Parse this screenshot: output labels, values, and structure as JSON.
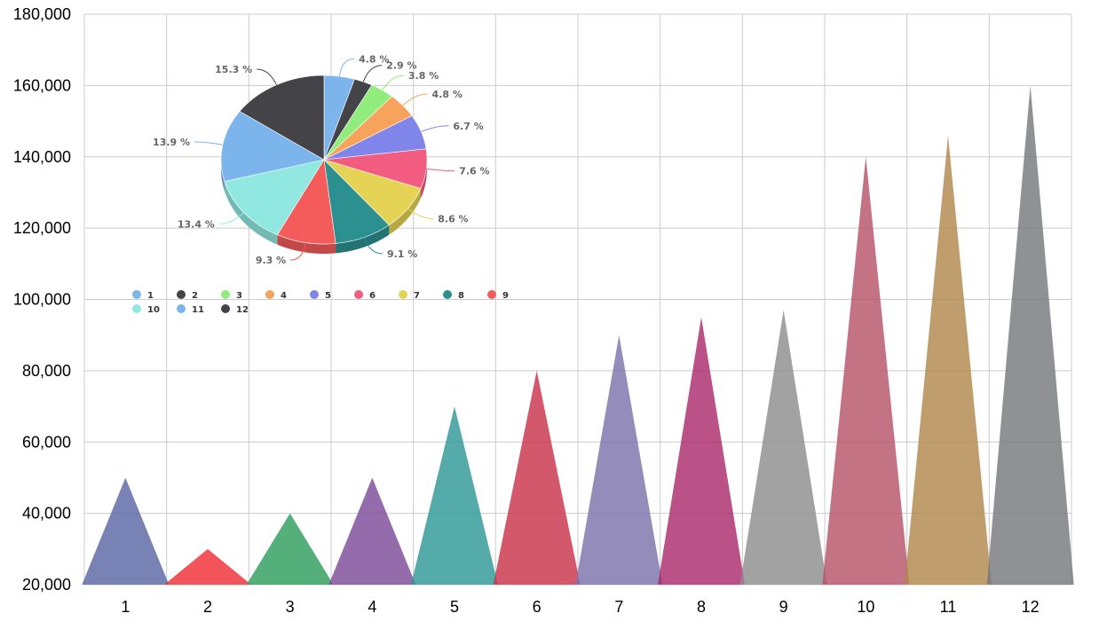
{
  "chart_data": [
    {
      "type": "area",
      "subtype": "triangle-peaks",
      "categories": [
        "1",
        "2",
        "3",
        "4",
        "5",
        "6",
        "7",
        "8",
        "9",
        "10",
        "11",
        "12"
      ],
      "values": [
        50000,
        30000,
        40000,
        50000,
        70000,
        80000,
        90000,
        95000,
        97000,
        140000,
        146000,
        160000
      ],
      "colors": [
        "#5a66a4",
        "#f02e34",
        "#2f9e5e",
        "#7c4b98",
        "#2e9896",
        "#c9334a",
        "#7d74ad",
        "#ab2b6d",
        "#8e8e8e",
        "#b65468",
        "#b2884c",
        "#76797c"
      ],
      "ylim": [
        20000,
        180000
      ],
      "yticks": [
        "20,000",
        "40,000",
        "60,000",
        "80,000",
        "100,000",
        "120,000",
        "140,000",
        "160,000",
        "180,000"
      ],
      "grid": true,
      "title": "",
      "xlabel": "",
      "ylabel": ""
    },
    {
      "type": "pie",
      "labels": [
        "1",
        "2",
        "3",
        "4",
        "5",
        "6",
        "7",
        "8",
        "9",
        "10",
        "11",
        "12"
      ],
      "percent": [
        4.8,
        2.9,
        3.8,
        4.8,
        6.7,
        7.6,
        8.6,
        9.1,
        9.3,
        13.4,
        13.9,
        15.3
      ],
      "percent_labels": [
        "4.8 %",
        "2.9 %",
        "3.8 %",
        "4.8 %",
        "6.7 %",
        "7.6 %",
        "8.6 %",
        "9.1 %",
        "9.3 %",
        "13.4 %",
        "13.9 %",
        "15.3 %"
      ],
      "colors": [
        "#7cb5ec",
        "#434348",
        "#90ed7d",
        "#f7a35c",
        "#8085e9",
        "#f15c80",
        "#e4d354",
        "#2b908f",
        "#f45b5b",
        "#91e8e1",
        "#7cb5ec",
        "#434348"
      ],
      "legend": "bottom",
      "style": "3d"
    }
  ]
}
